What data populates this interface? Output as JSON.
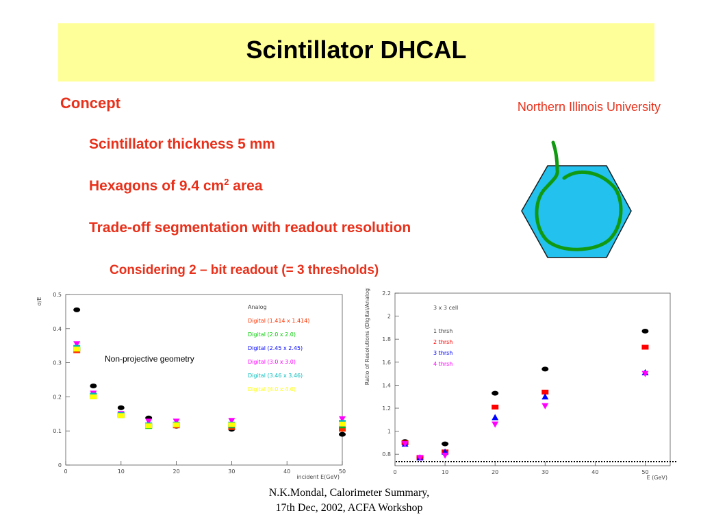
{
  "slide": {
    "title": "Scintillator DHCAL",
    "concept": "Concept",
    "bullet1": "Scintillator thickness 5 mm",
    "bullet2_pre": "Hexagons of 9.4 cm",
    "bullet2_sup": "2",
    "bullet2_post": " area",
    "bullet3": "Trade-off segmentation with readout resolution",
    "considering": "Considering 2 – bit readout (= 3 thresholds)",
    "affiliation": "Northern Illinois University",
    "overlay_note": "Non-projective geometry",
    "footer_line1": "N.K.Mondal, Calorimeter Summary,",
    "footer_line2": "17th Dec, 2002, ACFA Workshop"
  },
  "colors": {
    "title_bg": "#ffff99",
    "accent_red": "#e8301a",
    "hex_fill": "#22c1ee",
    "fiber": "#119911"
  },
  "chart_data": [
    {
      "type": "scatter",
      "ylabel": "σ/E",
      "xlabel": "incident E(GeV)",
      "xlim": [
        0,
        50
      ],
      "ylim": [
        0,
        0.5
      ],
      "xticks": [
        "0",
        "10",
        "20",
        "30",
        "40",
        "50"
      ],
      "yticks": [
        "0",
        "0.1",
        "0.2",
        "0.3",
        "0.4",
        "0.5"
      ],
      "x": [
        2,
        5,
        10,
        15,
        20,
        30,
        50
      ],
      "series": [
        {
          "name": "Analog",
          "color": "#000000",
          "marker": "circle",
          "values": [
            0.455,
            0.232,
            0.168,
            0.138,
            0.114,
            0.105,
            0.09
          ]
        },
        {
          "name": "Digital (1.414 x 1.414)",
          "color": "#ff3300",
          "marker": "square",
          "values": [
            0.335,
            0.205,
            0.148,
            0.115,
            0.115,
            0.11,
            0.105
          ]
        },
        {
          "name": "Digital (2.0 x 2.0)",
          "color": "#00cc00",
          "marker": "square",
          "values": [
            0.34,
            0.2,
            0.145,
            0.113,
            0.118,
            0.115,
            0.115
          ]
        },
        {
          "name": "Digital (2.45 x 2.45)",
          "color": "#0000ff",
          "marker": "triangle-up",
          "values": [
            0.345,
            0.203,
            0.148,
            0.12,
            0.12,
            0.118,
            0.12
          ]
        },
        {
          "name": "Digital (3.0 x 3.0)",
          "color": "#ff00ff",
          "marker": "triangle-down",
          "values": [
            0.355,
            0.21,
            0.15,
            0.128,
            0.128,
            0.13,
            0.135
          ]
        },
        {
          "name": "Digital (3.46 x 3.46)",
          "color": "#00bbbb",
          "marker": "square",
          "values": [
            0.345,
            0.205,
            0.148,
            0.118,
            0.12,
            0.12,
            0.125
          ]
        },
        {
          "name": "Digital (4.0 x 4.0)",
          "color": "#ffff00",
          "marker": "square",
          "values": [
            0.34,
            0.2,
            0.145,
            0.115,
            0.118,
            0.118,
            0.12
          ]
        }
      ]
    },
    {
      "type": "scatter",
      "ylabel": "Ratio of Resolutions (Digital/Analog)",
      "xlabel": "E (GeV)",
      "annotation": "3 x 3 cell",
      "xlim": [
        0,
        55
      ],
      "ylim": [
        0.7,
        2.2
      ],
      "xticks": [
        "0",
        "10",
        "20",
        "30",
        "40",
        "50"
      ],
      "yticks": [
        "0.8",
        "1",
        "1.2",
        "1.4",
        "1.6",
        "1.8",
        "2",
        "2.2"
      ],
      "x": [
        2,
        5,
        10,
        20,
        30,
        50
      ],
      "series": [
        {
          "name": "1 thrsh",
          "color": "#000000",
          "marker": "circle",
          "values": [
            0.91,
            0.77,
            0.89,
            1.33,
            1.54,
            1.87
          ]
        },
        {
          "name": "2 thrsh",
          "color": "#ff0000",
          "marker": "square",
          "values": [
            0.9,
            0.77,
            0.82,
            1.21,
            1.34,
            1.73
          ]
        },
        {
          "name": "3 thrsh",
          "color": "#0000ff",
          "marker": "triangle-up",
          "values": [
            0.89,
            0.77,
            0.82,
            1.12,
            1.3,
            1.51
          ]
        },
        {
          "name": "4 thrsh",
          "color": "#ff00ff",
          "marker": "triangle-down",
          "values": [
            0.89,
            0.77,
            0.79,
            1.06,
            1.22,
            1.5
          ]
        }
      ]
    }
  ]
}
